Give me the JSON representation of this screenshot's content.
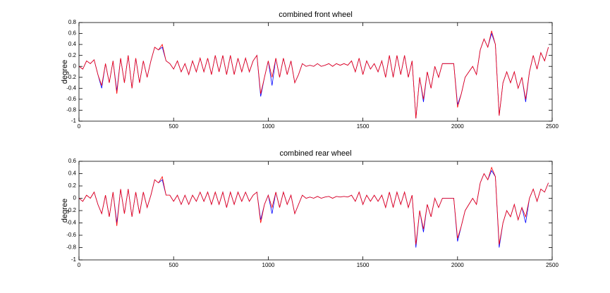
{
  "chart_data": [
    {
      "type": "line",
      "title": "combined front wheel",
      "ylabel": "degree",
      "xlim": [
        0,
        2500
      ],
      "xticks": [
        0,
        500,
        1000,
        1500,
        2000,
        2500
      ],
      "ylim": [
        -1,
        0.8
      ],
      "yticks": [
        -1,
        -0.8,
        -0.6,
        -0.4,
        -0.2,
        0,
        0.2,
        0.4,
        0.6,
        0.8
      ],
      "x": [
        0,
        20,
        40,
        60,
        80,
        100,
        120,
        140,
        160,
        180,
        200,
        220,
        240,
        260,
        280,
        300,
        320,
        340,
        360,
        380,
        400,
        420,
        440,
        460,
        480,
        500,
        520,
        540,
        560,
        580,
        600,
        620,
        640,
        660,
        680,
        700,
        720,
        740,
        760,
        780,
        800,
        820,
        840,
        860,
        880,
        900,
        920,
        940,
        960,
        980,
        1000,
        1020,
        1040,
        1060,
        1080,
        1100,
        1120,
        1140,
        1160,
        1180,
        1200,
        1220,
        1240,
        1260,
        1280,
        1300,
        1320,
        1340,
        1360,
        1380,
        1400,
        1420,
        1440,
        1460,
        1480,
        1500,
        1520,
        1540,
        1560,
        1580,
        1600,
        1620,
        1640,
        1660,
        1680,
        1700,
        1720,
        1740,
        1760,
        1780,
        1800,
        1820,
        1840,
        1860,
        1880,
        1900,
        1920,
        1940,
        1960,
        1980,
        2000,
        2020,
        2040,
        2060,
        2080,
        2100,
        2120,
        2140,
        2160,
        2180,
        2200,
        2220,
        2240,
        2260,
        2280,
        2300,
        2320,
        2340,
        2360,
        2380,
        2400,
        2420,
        2440,
        2460,
        2480
      ],
      "series": [
        {
          "color": "#0000ff",
          "values": [
            0,
            -0.05,
            0.1,
            0.05,
            0.12,
            -0.15,
            -0.4,
            0.05,
            -0.3,
            0.1,
            -0.45,
            0.15,
            -0.3,
            0.2,
            -0.4,
            0.15,
            -0.3,
            0.1,
            -0.2,
            0.1,
            0.35,
            0.3,
            0.35,
            0.1,
            0.05,
            -0.05,
            0.1,
            -0.1,
            0.05,
            -0.15,
            0.1,
            -0.1,
            0.15,
            -0.1,
            0.15,
            -0.15,
            0.2,
            -0.1,
            0.2,
            -0.15,
            0.2,
            -0.15,
            0.15,
            -0.1,
            0.15,
            -0.1,
            0.1,
            0.2,
            -0.55,
            -0.2,
            0.1,
            -0.35,
            0.15,
            -0.2,
            0.15,
            -0.15,
            0.1,
            -0.3,
            -0.15,
            0.05,
            0,
            0.02,
            0,
            0.05,
            0,
            0.02,
            0.05,
            0,
            0.05,
            0.02,
            0.05,
            0.02,
            0.1,
            -0.1,
            0.15,
            -0.15,
            0.1,
            -0.05,
            0.05,
            -0.1,
            0.1,
            -0.2,
            0.2,
            -0.2,
            0.2,
            -0.15,
            0.2,
            -0.2,
            0.1,
            -0.95,
            -0.2,
            -0.65,
            -0.1,
            -0.4,
            0,
            -0.2,
            0.05,
            0.05,
            0.05,
            0.05,
            -0.7,
            -0.5,
            -0.2,
            -0.1,
            0,
            -0.15,
            0.3,
            0.5,
            0.35,
            0.6,
            0.4,
            -0.9,
            -0.3,
            -0.1,
            -0.3,
            -0.1,
            -0.4,
            -0.2,
            -0.65,
            -0.1,
            0.2,
            -0.05,
            0.25,
            0.1,
            0.35
          ]
        },
        {
          "color": "#ff0000",
          "values": [
            0,
            -0.05,
            0.1,
            0.05,
            0.12,
            -0.15,
            -0.35,
            0.05,
            -0.3,
            0.1,
            -0.5,
            0.15,
            -0.3,
            0.2,
            -0.4,
            0.15,
            -0.3,
            0.1,
            -0.2,
            0.1,
            0.35,
            0.3,
            0.4,
            0.1,
            0.05,
            -0.05,
            0.1,
            -0.1,
            0.05,
            -0.15,
            0.1,
            -0.1,
            0.15,
            -0.1,
            0.15,
            -0.15,
            0.2,
            -0.1,
            0.2,
            -0.15,
            0.2,
            -0.15,
            0.15,
            -0.1,
            0.15,
            -0.1,
            0.1,
            0.2,
            -0.5,
            -0.2,
            0.1,
            -0.2,
            0.15,
            -0.2,
            0.15,
            -0.15,
            0.1,
            -0.3,
            -0.15,
            0.05,
            0,
            0.02,
            0,
            0.05,
            0,
            0.02,
            0.05,
            0,
            0.05,
            0.02,
            0.05,
            0.02,
            0.1,
            -0.1,
            0.15,
            -0.15,
            0.1,
            -0.05,
            0.05,
            -0.1,
            0.1,
            -0.2,
            0.2,
            -0.2,
            0.2,
            -0.15,
            0.2,
            -0.2,
            0.1,
            -0.95,
            -0.2,
            -0.6,
            -0.1,
            -0.4,
            0,
            -0.2,
            0.05,
            0.05,
            0.05,
            0.05,
            -0.75,
            -0.5,
            -0.2,
            -0.1,
            0,
            -0.15,
            0.3,
            0.5,
            0.35,
            0.65,
            0.4,
            -0.9,
            -0.3,
            -0.1,
            -0.3,
            -0.1,
            -0.4,
            -0.2,
            -0.6,
            -0.1,
            0.2,
            -0.05,
            0.25,
            0.1,
            0.35
          ]
        }
      ]
    },
    {
      "type": "line",
      "title": "combined rear wheel",
      "ylabel": "degree",
      "xlim": [
        0,
        2500
      ],
      "xticks": [
        0,
        500,
        1000,
        1500,
        2000,
        2500
      ],
      "ylim": [
        -1,
        0.6
      ],
      "yticks": [
        -1,
        -0.8,
        -0.6,
        -0.4,
        -0.2,
        0,
        0.2,
        0.4,
        0.6
      ],
      "x": [
        0,
        20,
        40,
        60,
        80,
        100,
        120,
        140,
        160,
        180,
        200,
        220,
        240,
        260,
        280,
        300,
        320,
        340,
        360,
        380,
        400,
        420,
        440,
        460,
        480,
        500,
        520,
        540,
        560,
        580,
        600,
        620,
        640,
        660,
        680,
        700,
        720,
        740,
        760,
        780,
        800,
        820,
        840,
        860,
        880,
        900,
        920,
        940,
        960,
        980,
        1000,
        1020,
        1040,
        1060,
        1080,
        1100,
        1120,
        1140,
        1160,
        1180,
        1200,
        1220,
        1240,
        1260,
        1280,
        1300,
        1320,
        1340,
        1360,
        1380,
        1400,
        1420,
        1440,
        1460,
        1480,
        1500,
        1520,
        1540,
        1560,
        1580,
        1600,
        1620,
        1640,
        1660,
        1680,
        1700,
        1720,
        1740,
        1760,
        1780,
        1800,
        1820,
        1840,
        1860,
        1880,
        1900,
        1920,
        1940,
        1960,
        1980,
        2000,
        2020,
        2040,
        2060,
        2080,
        2100,
        2120,
        2140,
        2160,
        2180,
        2200,
        2220,
        2240,
        2260,
        2280,
        2300,
        2320,
        2340,
        2360,
        2380,
        2400,
        2420,
        2440,
        2460,
        2480
      ],
      "series": [
        {
          "color": "#0000ff",
          "values": [
            0,
            -0.05,
            0.05,
            0,
            0.1,
            -0.1,
            -0.25,
            0.05,
            -0.3,
            0.1,
            -0.4,
            0.15,
            -0.25,
            0.15,
            -0.3,
            0.1,
            -0.25,
            0.1,
            -0.15,
            0.05,
            0.3,
            0.25,
            0.3,
            0.05,
            0.05,
            -0.05,
            0.05,
            -0.1,
            0.05,
            -0.1,
            0.05,
            -0.05,
            0.1,
            -0.05,
            0.1,
            -0.1,
            0.1,
            -0.1,
            0.1,
            -0.15,
            0.1,
            -0.1,
            0.1,
            -0.05,
            0.1,
            -0.05,
            0.05,
            0.1,
            -0.35,
            -0.1,
            0.05,
            -0.25,
            0.1,
            -0.15,
            0.1,
            -0.1,
            0.05,
            -0.25,
            -0.1,
            0.05,
            0,
            0.02,
            0,
            0.03,
            0,
            0.02,
            0.03,
            0,
            0.03,
            0.02,
            0.03,
            0.02,
            0.05,
            -0.05,
            0.1,
            -0.1,
            0.05,
            -0.05,
            0.05,
            -0.05,
            0.05,
            -0.15,
            0.1,
            -0.15,
            0.1,
            -0.1,
            0.1,
            -0.15,
            0.05,
            -0.8,
            -0.2,
            -0.55,
            -0.1,
            -0.3,
            0,
            -0.15,
            0,
            0,
            0,
            0,
            -0.7,
            -0.45,
            -0.2,
            -0.1,
            0,
            -0.1,
            0.25,
            0.4,
            0.3,
            0.45,
            0.35,
            -0.8,
            -0.4,
            -0.2,
            -0.3,
            -0.1,
            -0.35,
            -0.15,
            -0.4,
            0,
            0.15,
            -0.05,
            0.15,
            0.1,
            0.25
          ]
        },
        {
          "color": "#ff0000",
          "values": [
            0,
            -0.05,
            0.05,
            0,
            0.1,
            -0.1,
            -0.25,
            0.05,
            -0.3,
            0.1,
            -0.45,
            0.15,
            -0.25,
            0.15,
            -0.3,
            0.1,
            -0.25,
            0.1,
            -0.15,
            0.05,
            0.3,
            0.25,
            0.35,
            0.05,
            0.05,
            -0.05,
            0.05,
            -0.1,
            0.05,
            -0.1,
            0.05,
            -0.05,
            0.1,
            -0.05,
            0.1,
            -0.1,
            0.1,
            -0.1,
            0.1,
            -0.15,
            0.1,
            -0.1,
            0.1,
            -0.05,
            0.1,
            -0.05,
            0.05,
            0.1,
            -0.4,
            -0.1,
            0.05,
            -0.15,
            0.1,
            -0.15,
            0.1,
            -0.1,
            0.05,
            -0.25,
            -0.1,
            0.05,
            0,
            0.02,
            0,
            0.03,
            0,
            0.02,
            0.03,
            0,
            0.03,
            0.02,
            0.03,
            0.02,
            0.05,
            -0.05,
            0.1,
            -0.1,
            0.05,
            -0.05,
            0.05,
            -0.05,
            0.05,
            -0.15,
            0.1,
            -0.15,
            0.1,
            -0.1,
            0.1,
            -0.15,
            0.05,
            -0.75,
            -0.2,
            -0.5,
            -0.1,
            -0.3,
            0,
            -0.15,
            0,
            0,
            0,
            0,
            -0.65,
            -0.45,
            -0.2,
            -0.1,
            0,
            -0.1,
            0.25,
            0.4,
            0.3,
            0.5,
            0.35,
            -0.75,
            -0.4,
            -0.2,
            -0.3,
            -0.1,
            -0.35,
            -0.15,
            -0.3,
            0,
            0.15,
            -0.05,
            0.15,
            0.1,
            0.25
          ]
        }
      ]
    }
  ]
}
